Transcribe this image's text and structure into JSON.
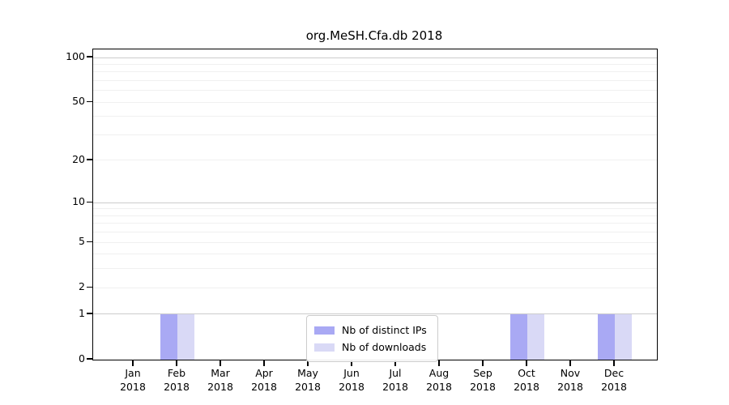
{
  "chart_data": {
    "type": "bar",
    "title": "org.MeSH.Cfa.db 2018",
    "xlabel": "",
    "ylabel": "",
    "year": "2018",
    "categories": [
      "Jan",
      "Feb",
      "Mar",
      "Apr",
      "May",
      "Jun",
      "Jul",
      "Aug",
      "Sep",
      "Oct",
      "Nov",
      "Dec"
    ],
    "series": [
      {
        "name": "Nb of distinct IPs",
        "color": "#a9a9f4",
        "values": [
          0,
          1,
          0,
          0,
          0,
          0,
          0,
          0,
          0,
          1,
          0,
          1
        ]
      },
      {
        "name": "Nb of downloads",
        "color": "#d9d9f6",
        "values": [
          0,
          1,
          0,
          0,
          0,
          0,
          0,
          0,
          0,
          1,
          0,
          1
        ]
      }
    ],
    "yscale": "log1p",
    "ylim": [
      0,
      113
    ],
    "yticks": [
      0,
      1,
      2,
      5,
      10,
      20,
      50,
      100
    ],
    "grid_minor_values": [
      2,
      3,
      4,
      5,
      6,
      7,
      8,
      9,
      20,
      30,
      40,
      50,
      60,
      70,
      80,
      90
    ],
    "grid_major_values": [
      1,
      10,
      100
    ],
    "legend_position": "lower center",
    "grid_on": true,
    "colors": {
      "grid_minor": "#f0f0f0",
      "grid_major": "#cccccc",
      "spine": "#000000",
      "text": "#000000",
      "legend_border": "#cccccc",
      "background": "#ffffff"
    }
  }
}
